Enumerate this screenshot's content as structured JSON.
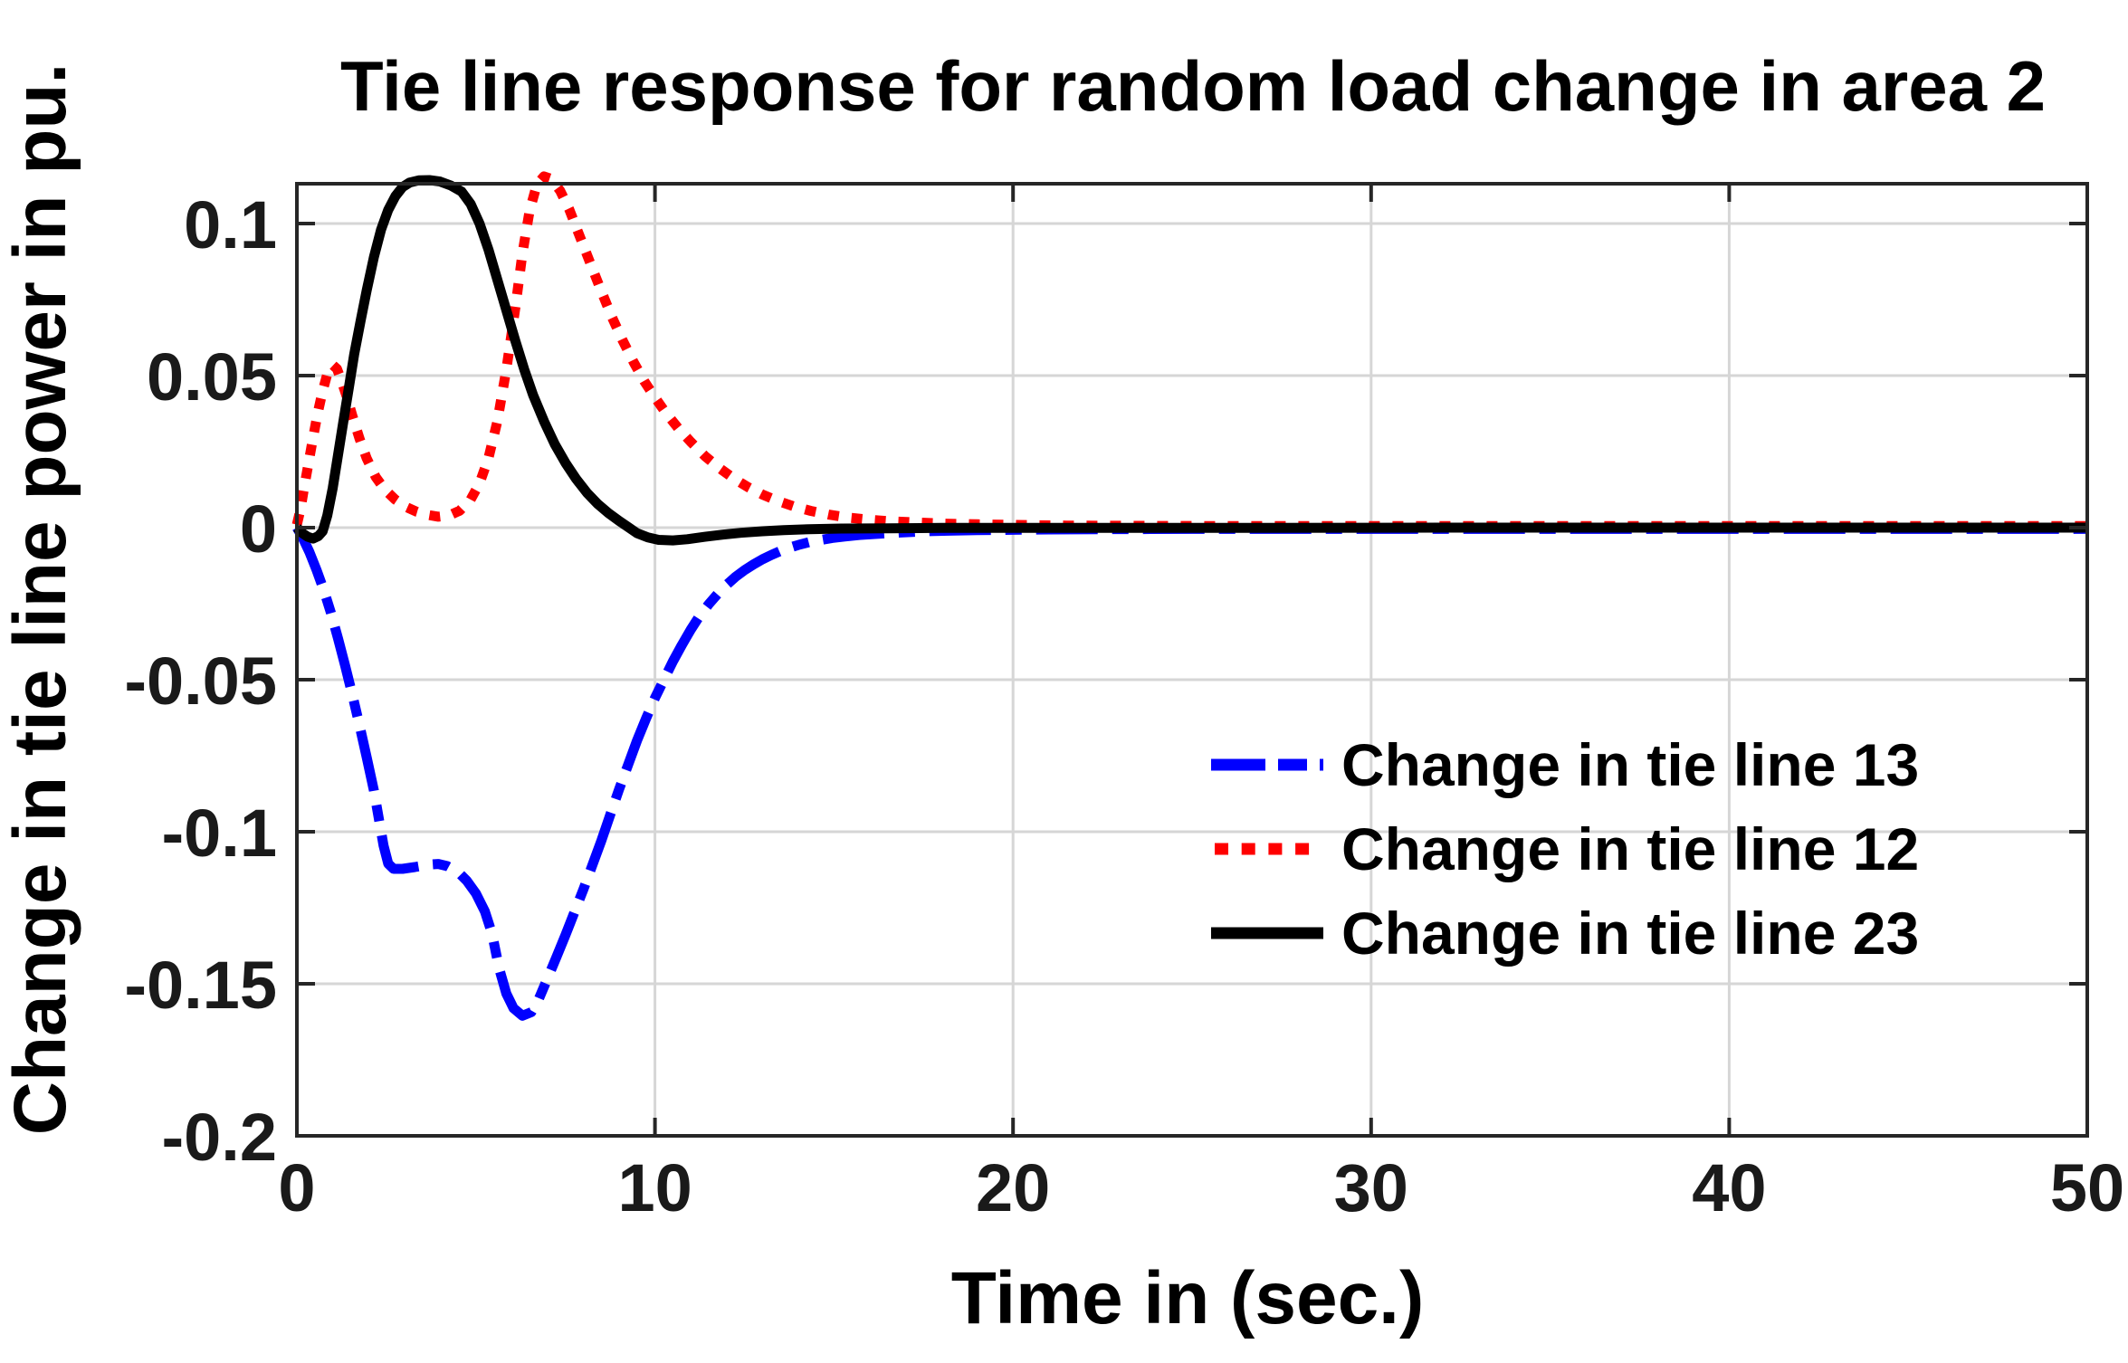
{
  "title": "Tie line response for random load change in area 2",
  "colors": {
    "background": "#ffffff",
    "axes_box": "#262626",
    "grid": "#d6d6d6",
    "tick_text": "#1a1a1a",
    "label_text": "#000000",
    "series_blue": "#0000ff",
    "series_red": "#ff0000",
    "series_black": "#000000"
  },
  "chart_data": {
    "type": "line",
    "title": "Tie line response for random load change in area 2",
    "xlabel": "Time in (sec.)",
    "ylabel": "Change in tie line power in pu.",
    "xlim": [
      0,
      50
    ],
    "ylim": [
      -0.2,
      0.1131
    ],
    "grid": true,
    "box": true,
    "tick_dir": "in",
    "legend_position": "right-center",
    "legend_frame": false,
    "xticks": [
      {
        "v": 0,
        "label": "0"
      },
      {
        "v": 10,
        "label": "10"
      },
      {
        "v": 20,
        "label": "20"
      },
      {
        "v": 30,
        "label": "30"
      },
      {
        "v": 40,
        "label": "40"
      },
      {
        "v": 50,
        "label": "50"
      }
    ],
    "yticks": [
      {
        "v": 0.1,
        "label": "0.1"
      },
      {
        "v": 0.05,
        "label": "0.05"
      },
      {
        "v": 0,
        "label": "0"
      },
      {
        "v": -0.05,
        "label": "-0.05"
      },
      {
        "v": -0.1,
        "label": "-0.1"
      },
      {
        "v": -0.15,
        "label": "-0.15"
      },
      {
        "v": -0.2,
        "label": "-0.2"
      }
    ],
    "series": [
      {
        "name": "Change in tie line 13",
        "color": "#0000ff",
        "style": "dash-dot",
        "width": 11,
        "points": [
          [
            0,
            0
          ],
          [
            0.15,
            -0.003
          ],
          [
            0.35,
            -0.008
          ],
          [
            0.55,
            -0.014
          ],
          [
            0.75,
            -0.0205
          ],
          [
            0.95,
            -0.028
          ],
          [
            1.15,
            -0.0365
          ],
          [
            1.35,
            -0.0455
          ],
          [
            1.55,
            -0.055
          ],
          [
            1.75,
            -0.065
          ],
          [
            1.95,
            -0.0755
          ],
          [
            2.15,
            -0.0865
          ],
          [
            2.3,
            -0.0965
          ],
          [
            2.42,
            -0.1045
          ],
          [
            2.55,
            -0.1105
          ],
          [
            2.7,
            -0.1122
          ],
          [
            2.95,
            -0.1122
          ],
          [
            3.3,
            -0.1116
          ],
          [
            3.7,
            -0.1108
          ],
          [
            3.95,
            -0.1106
          ],
          [
            4.2,
            -0.1113
          ],
          [
            4.5,
            -0.1132
          ],
          [
            4.75,
            -0.1162
          ],
          [
            5.0,
            -0.1203
          ],
          [
            5.25,
            -0.1262
          ],
          [
            5.45,
            -0.1335
          ],
          [
            5.65,
            -0.145
          ],
          [
            5.85,
            -0.1532
          ],
          [
            6.05,
            -0.158
          ],
          [
            6.3,
            -0.1605
          ],
          [
            6.55,
            -0.1593
          ],
          [
            6.75,
            -0.1552
          ],
          [
            7.0,
            -0.1482
          ],
          [
            7.25,
            -0.1412
          ],
          [
            7.5,
            -0.134
          ],
          [
            7.75,
            -0.1265
          ],
          [
            8.0,
            -0.119
          ],
          [
            8.25,
            -0.111
          ],
          [
            8.5,
            -0.103
          ],
          [
            8.75,
            -0.0945
          ],
          [
            9.0,
            -0.086
          ],
          [
            9.25,
            -0.078
          ],
          [
            9.5,
            -0.07
          ],
          [
            9.75,
            -0.0628
          ],
          [
            10.0,
            -0.056
          ],
          [
            10.25,
            -0.05
          ],
          [
            10.5,
            -0.044
          ],
          [
            10.75,
            -0.0386
          ],
          [
            11.0,
            -0.0335
          ],
          [
            11.25,
            -0.029
          ],
          [
            11.5,
            -0.0252
          ],
          [
            11.75,
            -0.0218
          ],
          [
            12.0,
            -0.0188
          ],
          [
            12.25,
            -0.0162
          ],
          [
            12.5,
            -0.014
          ],
          [
            12.75,
            -0.0121
          ],
          [
            13.0,
            -0.0104
          ],
          [
            13.25,
            -0.009
          ],
          [
            13.5,
            -0.0077
          ],
          [
            13.75,
            -0.0066
          ],
          [
            14.0,
            -0.0057
          ],
          [
            14.3,
            -0.0048
          ],
          [
            14.6,
            -0.0041
          ],
          [
            14.95,
            -0.0034
          ],
          [
            15.3,
            -0.0029
          ],
          [
            15.7,
            -0.0024
          ],
          [
            16.1,
            -0.0021
          ],
          [
            16.5,
            -0.0018
          ],
          [
            17.0,
            -0.0015
          ],
          [
            17.6,
            -0.0012
          ],
          [
            18.2,
            -0.001
          ],
          [
            19.0,
            -0.0008
          ],
          [
            20.0,
            -0.0007
          ],
          [
            21.0,
            -0.0006
          ],
          [
            22.5,
            -0.0005
          ],
          [
            25,
            -0.0004
          ],
          [
            28,
            -0.0004
          ],
          [
            32,
            -0.0004
          ],
          [
            36,
            -0.0004
          ],
          [
            40,
            -0.0004
          ],
          [
            45,
            -0.0004
          ],
          [
            50,
            -0.0004
          ]
        ]
      },
      {
        "name": "Change in tie line 12",
        "color": "#ff0000",
        "style": "dotted",
        "width": 11,
        "points": [
          [
            0,
            0.001
          ],
          [
            0.1,
            0.006
          ],
          [
            0.2,
            0.013
          ],
          [
            0.32,
            0.021
          ],
          [
            0.45,
            0.0295
          ],
          [
            0.58,
            0.0375
          ],
          [
            0.72,
            0.045
          ],
          [
            0.85,
            0.0505
          ],
          [
            1.0,
            0.0535
          ],
          [
            1.12,
            0.0522
          ],
          [
            1.25,
            0.0482
          ],
          [
            1.4,
            0.0428
          ],
          [
            1.55,
            0.0368
          ],
          [
            1.75,
            0.0293
          ],
          [
            1.95,
            0.0228
          ],
          [
            2.2,
            0.0167
          ],
          [
            2.45,
            0.0126
          ],
          [
            2.75,
            0.0092
          ],
          [
            3.05,
            0.0068
          ],
          [
            3.35,
            0.0052
          ],
          [
            3.65,
            0.0042
          ],
          [
            3.95,
            0.0036
          ],
          [
            4.25,
            0.004
          ],
          [
            4.55,
            0.0056
          ],
          [
            4.85,
            0.0092
          ],
          [
            5.1,
            0.0146
          ],
          [
            5.35,
            0.0228
          ],
          [
            5.6,
            0.035
          ],
          [
            5.85,
            0.052
          ],
          [
            6.1,
            0.0722
          ],
          [
            6.3,
            0.0902
          ],
          [
            6.5,
            0.1042
          ],
          [
            6.7,
            0.1128
          ],
          [
            6.9,
            0.1155
          ],
          [
            7.1,
            0.1147
          ],
          [
            7.35,
            0.1108
          ],
          [
            7.6,
            0.1048
          ],
          [
            7.9,
            0.0958
          ],
          [
            8.2,
            0.0868
          ],
          [
            8.5,
            0.0778
          ],
          [
            8.8,
            0.0692
          ],
          [
            9.1,
            0.0615
          ],
          [
            9.4,
            0.0545
          ],
          [
            9.7,
            0.0482
          ],
          [
            10.0,
            0.0428
          ],
          [
            10.3,
            0.0378
          ],
          [
            10.65,
            0.0327
          ],
          [
            11.0,
            0.0282
          ],
          [
            11.4,
            0.0235
          ],
          [
            11.8,
            0.0196
          ],
          [
            12.2,
            0.0162
          ],
          [
            12.6,
            0.0133
          ],
          [
            13.0,
            0.0109
          ],
          [
            13.45,
            0.0087
          ],
          [
            13.9,
            0.0069
          ],
          [
            14.35,
            0.0055
          ],
          [
            14.85,
            0.0043
          ],
          [
            15.4,
            0.0033
          ],
          [
            16.0,
            0.0026
          ],
          [
            16.6,
            0.0021
          ],
          [
            17.3,
            0.0017
          ],
          [
            18.1,
            0.0013
          ],
          [
            19.0,
            0.0011
          ],
          [
            20.0,
            0.0009
          ],
          [
            21.5,
            0.0007
          ],
          [
            23.5,
            0.0006
          ],
          [
            26,
            0.0005
          ],
          [
            30,
            0.0005
          ],
          [
            35,
            0.0005
          ],
          [
            40,
            0.0005
          ],
          [
            45,
            0.0005
          ],
          [
            50,
            0.0005
          ]
        ]
      },
      {
        "name": "Change in tie line 23",
        "color": "#000000",
        "style": "solid",
        "width": 11,
        "points": [
          [
            0,
            0
          ],
          [
            0.15,
            -0.0018
          ],
          [
            0.3,
            -0.003
          ],
          [
            0.45,
            -0.0036
          ],
          [
            0.6,
            -0.0028
          ],
          [
            0.72,
            -0.0012
          ],
          [
            0.85,
            0.004
          ],
          [
            1.0,
            0.013
          ],
          [
            1.15,
            0.024
          ],
          [
            1.3,
            0.035
          ],
          [
            1.45,
            0.046
          ],
          [
            1.6,
            0.057
          ],
          [
            1.78,
            0.068
          ],
          [
            1.95,
            0.078
          ],
          [
            2.15,
            0.089
          ],
          [
            2.35,
            0.098
          ],
          [
            2.55,
            0.1045
          ],
          [
            2.75,
            0.109
          ],
          [
            2.95,
            0.112
          ],
          [
            3.15,
            0.1135
          ],
          [
            3.4,
            0.1142
          ],
          [
            3.7,
            0.1143
          ],
          [
            4.0,
            0.1138
          ],
          [
            4.3,
            0.1125
          ],
          [
            4.6,
            0.1105
          ],
          [
            4.85,
            0.1065
          ],
          [
            5.1,
            0.1
          ],
          [
            5.35,
            0.0915
          ],
          [
            5.6,
            0.0815
          ],
          [
            5.85,
            0.0715
          ],
          [
            6.1,
            0.0615
          ],
          [
            6.35,
            0.052
          ],
          [
            6.6,
            0.0435
          ],
          [
            6.9,
            0.035
          ],
          [
            7.2,
            0.0275
          ],
          [
            7.5,
            0.0213
          ],
          [
            7.8,
            0.016
          ],
          [
            8.1,
            0.0115
          ],
          [
            8.4,
            0.0078
          ],
          [
            8.7,
            0.0048
          ],
          [
            9.0,
            0.0022
          ],
          [
            9.25,
            0.0002
          ],
          [
            9.5,
            -0.0018
          ],
          [
            9.8,
            -0.0032
          ],
          [
            10.1,
            -0.004
          ],
          [
            10.5,
            -0.0042
          ],
          [
            10.9,
            -0.0038
          ],
          [
            11.4,
            -0.003
          ],
          [
            11.9,
            -0.0023
          ],
          [
            12.4,
            -0.0017
          ],
          [
            13.0,
            -0.0012
          ],
          [
            13.6,
            -0.0008
          ],
          [
            14.3,
            -0.0005
          ],
          [
            15.2,
            -0.0003
          ],
          [
            16.5,
            -0.0002
          ],
          [
            18,
            -0.0001
          ],
          [
            20,
            -0.0001
          ],
          [
            25,
            -0.0001
          ],
          [
            32,
            0
          ],
          [
            41,
            0
          ],
          [
            50,
            0
          ]
        ]
      }
    ]
  }
}
